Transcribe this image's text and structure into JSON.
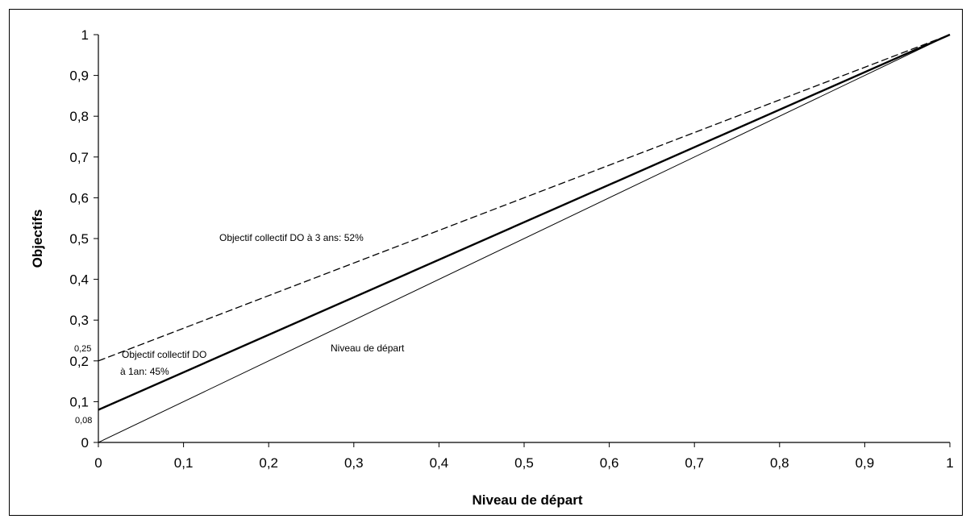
{
  "chart_data": {
    "type": "line",
    "title": "",
    "xlabel": "Niveau de départ",
    "ylabel": "Objectifs",
    "xlim": [
      0,
      1
    ],
    "ylim": [
      0,
      1
    ],
    "x_ticks": [
      "0",
      "0,1",
      "0,2",
      "0,3",
      "0,4",
      "0,5",
      "0,6",
      "0,7",
      "0,8",
      "0,9",
      "1"
    ],
    "y_ticks": [
      "0",
      "0,1",
      "0,2",
      "0,3",
      "0,4",
      "0,5",
      "0,6",
      "0,7",
      "0,8",
      "0,9",
      "1"
    ],
    "grid": false,
    "series": [
      {
        "name": "Objectif collectif DO à 3 ans: 52%",
        "style": "dashed",
        "color": "#000000",
        "x": [
          0,
          1
        ],
        "y": [
          0.2,
          1
        ]
      },
      {
        "name": "Objectif collectif DO à 1an: 45%",
        "style": "solid-thick",
        "color": "#000000",
        "x": [
          0,
          1
        ],
        "y": [
          0.08,
          1
        ]
      },
      {
        "name": "Niveau de départ",
        "style": "solid-thin",
        "color": "#000000",
        "x": [
          0,
          1
        ],
        "y": [
          0,
          1
        ]
      }
    ],
    "annotations": [
      {
        "text": "Objectif collectif DO à 3 ans: 52%"
      },
      {
        "text": "Objectif collectif DO"
      },
      {
        "text": "à 1an: 45%"
      },
      {
        "text": "Niveau de départ"
      },
      {
        "text": "0,25"
      },
      {
        "text": "0,08"
      }
    ]
  }
}
